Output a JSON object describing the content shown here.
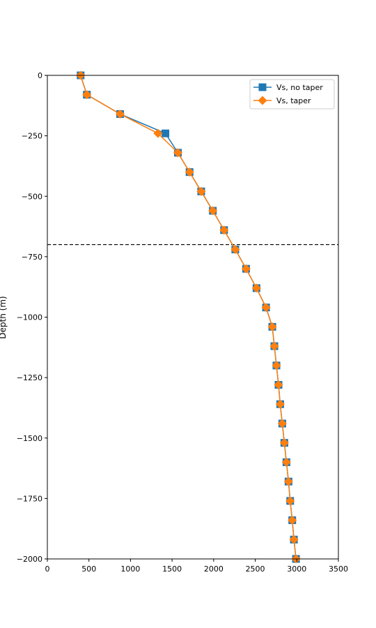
{
  "chart_data": {
    "type": "line",
    "title": "",
    "xlabel": "",
    "ylabel": "Depth (m)",
    "xlim": [
      0,
      3500
    ],
    "ylim": [
      -2000,
      0
    ],
    "xticks": [
      0,
      500,
      1000,
      1500,
      2000,
      2500,
      3000,
      3500
    ],
    "yticks": [
      0,
      -250,
      -500,
      -750,
      -1000,
      -1250,
      -1500,
      -1750,
      -2000
    ],
    "xtick_labels": [
      "0",
      "500",
      "1000",
      "1500",
      "2000",
      "2500",
      "3000",
      "3500"
    ],
    "ytick_labels": [
      "0",
      "−250",
      "−500",
      "−750",
      "−1000",
      "−1250",
      "−1500",
      "−1750",
      "−2000"
    ],
    "grid": false,
    "legend_position": "upper right",
    "reference_lines": [
      {
        "orientation": "horizontal",
        "y": -700,
        "style": "dashed",
        "color": "#000000"
      }
    ],
    "series": [
      {
        "name": "Vs, no taper",
        "color": "#1f77b4",
        "marker": "square",
        "points": [
          [
            400,
            0
          ],
          [
            475,
            -80
          ],
          [
            875,
            -160
          ],
          [
            1420,
            -240
          ],
          [
            1570,
            -320
          ],
          [
            1710,
            -400
          ],
          [
            1850,
            -480
          ],
          [
            1990,
            -560
          ],
          [
            2125,
            -640
          ],
          [
            2260,
            -720
          ],
          [
            2390,
            -800
          ],
          [
            2515,
            -880
          ],
          [
            2630,
            -960
          ],
          [
            2705,
            -1040
          ],
          [
            2730,
            -1120
          ],
          [
            2755,
            -1200
          ],
          [
            2780,
            -1280
          ],
          [
            2800,
            -1360
          ],
          [
            2825,
            -1440
          ],
          [
            2850,
            -1520
          ],
          [
            2875,
            -1600
          ],
          [
            2900,
            -1680
          ],
          [
            2920,
            -1760
          ],
          [
            2945,
            -1840
          ],
          [
            2965,
            -1920
          ],
          [
            2990,
            -2000
          ]
        ]
      },
      {
        "name": "Vs, taper",
        "color": "#ff7f0e",
        "marker": "diamond",
        "points": [
          [
            400,
            0
          ],
          [
            475,
            -80
          ],
          [
            875,
            -160
          ],
          [
            1330,
            -240
          ],
          [
            1570,
            -320
          ],
          [
            1710,
            -400
          ],
          [
            1850,
            -480
          ],
          [
            1990,
            -560
          ],
          [
            2125,
            -640
          ],
          [
            2260,
            -720
          ],
          [
            2390,
            -800
          ],
          [
            2515,
            -880
          ],
          [
            2630,
            -960
          ],
          [
            2705,
            -1040
          ],
          [
            2730,
            -1120
          ],
          [
            2755,
            -1200
          ],
          [
            2780,
            -1280
          ],
          [
            2800,
            -1360
          ],
          [
            2825,
            -1440
          ],
          [
            2850,
            -1520
          ],
          [
            2875,
            -1600
          ],
          [
            2900,
            -1680
          ],
          [
            2920,
            -1760
          ],
          [
            2945,
            -1840
          ],
          [
            2965,
            -1920
          ],
          [
            2990,
            -2000
          ]
        ]
      }
    ]
  }
}
